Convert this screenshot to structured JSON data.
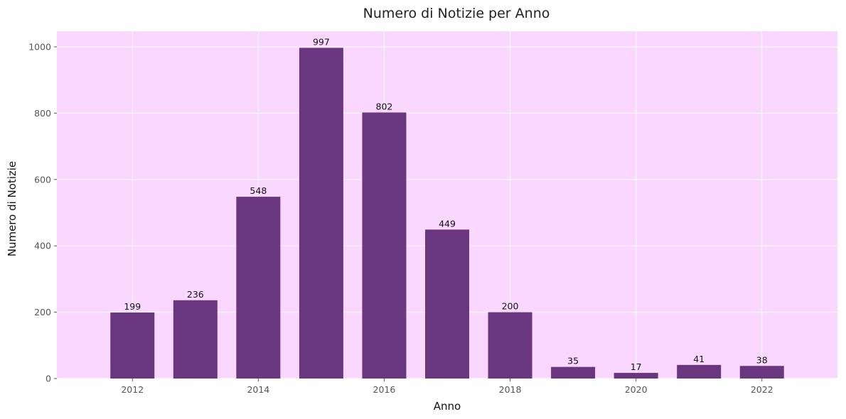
{
  "chart_data": {
    "type": "bar",
    "title": "Numero di Notizie per Anno",
    "xlabel": "Anno",
    "ylabel": "Numero di Notizie",
    "x": [
      2012,
      2013,
      2014,
      2015,
      2016,
      2017,
      2018,
      2019,
      2020,
      2021,
      2022
    ],
    "values": [
      199,
      236,
      548,
      997,
      802,
      449,
      200,
      35,
      17,
      41,
      38
    ],
    "xticks": [
      2012,
      2014,
      2016,
      2018,
      2020,
      2022
    ],
    "yticks": [
      0,
      200,
      400,
      600,
      800,
      1000
    ],
    "xlim": [
      2010.8,
      2023.2
    ],
    "ylim": [
      0,
      1047
    ],
    "grid": true,
    "colors": {
      "plot_background": "#f9d7ff",
      "bar": "#69367f",
      "grid": "#ffffff"
    }
  }
}
